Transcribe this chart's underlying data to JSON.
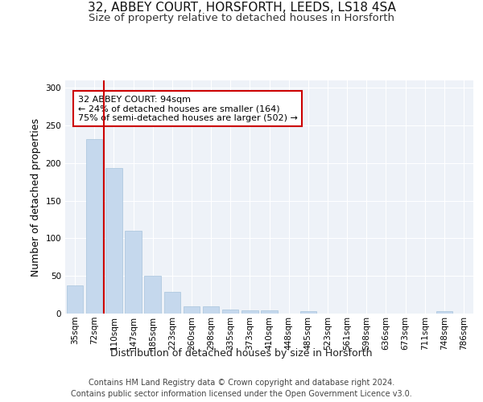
{
  "title1": "32, ABBEY COURT, HORSFORTH, LEEDS, LS18 4SA",
  "title2": "Size of property relative to detached houses in Horsforth",
  "xlabel": "Distribution of detached houses by size in Horsforth",
  "ylabel": "Number of detached properties",
  "categories": [
    "35sqm",
    "72sqm",
    "110sqm",
    "147sqm",
    "185sqm",
    "223sqm",
    "260sqm",
    "298sqm",
    "335sqm",
    "373sqm",
    "410sqm",
    "448sqm",
    "485sqm",
    "523sqm",
    "561sqm",
    "598sqm",
    "636sqm",
    "673sqm",
    "711sqm",
    "748sqm",
    "786sqm"
  ],
  "values": [
    37,
    232,
    193,
    110,
    50,
    29,
    10,
    10,
    5,
    4,
    4,
    0,
    3,
    0,
    0,
    0,
    0,
    0,
    0,
    3,
    0
  ],
  "bar_color": "#c5d8ed",
  "bar_edge_color": "#a8c4dc",
  "red_line_color": "#cc0000",
  "annotation_text": "32 ABBEY COURT: 94sqm\n← 24% of detached houses are smaller (164)\n75% of semi-detached houses are larger (502) →",
  "annotation_box_color": "#ffffff",
  "annotation_box_edge_color": "#cc0000",
  "ylim": [
    0,
    310
  ],
  "yticks": [
    0,
    50,
    100,
    150,
    200,
    250,
    300
  ],
  "footer1": "Contains HM Land Registry data © Crown copyright and database right 2024.",
  "footer2": "Contains public sector information licensed under the Open Government Licence v3.0.",
  "bg_color": "#eef2f8",
  "grid_color": "#ffffff",
  "title1_fontsize": 11,
  "title2_fontsize": 9.5,
  "axis_label_fontsize": 9,
  "tick_fontsize": 7.5,
  "footer_fontsize": 7,
  "annotation_fontsize": 8
}
